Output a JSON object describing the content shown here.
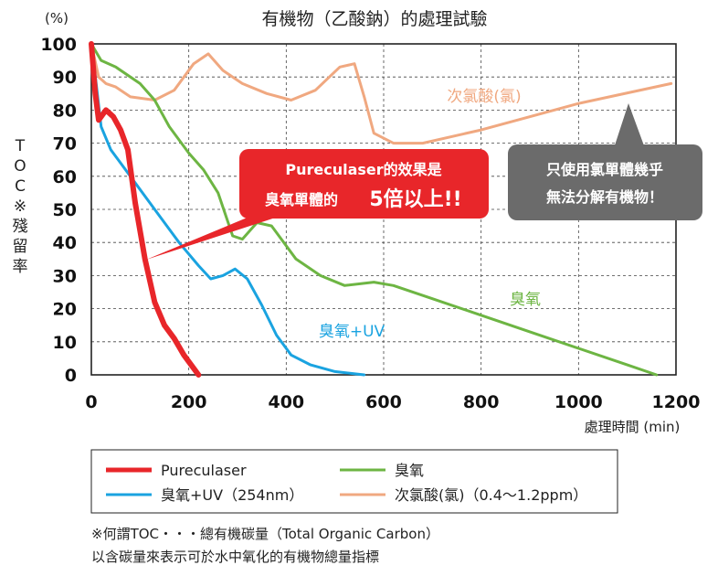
{
  "chart_data": {
    "type": "line",
    "title": "有機物（乙酸鈉）的處理試驗",
    "y_unit": "(%)",
    "ylabel": "TOC※殘留率",
    "xlabel": "處理時間 (min)",
    "xlim": [
      0,
      1200
    ],
    "ylim": [
      0,
      100
    ],
    "x_ticks": [
      "0",
      "200",
      "400",
      "600",
      "800",
      "1000",
      "1200"
    ],
    "y_ticks": [
      "0",
      "10",
      "20",
      "30",
      "40",
      "50",
      "60",
      "70",
      "80",
      "90",
      "100"
    ],
    "series": [
      {
        "name": "Pureculaser",
        "color": "#e8262a",
        "label": "",
        "points": [
          [
            0,
            100
          ],
          [
            8,
            85
          ],
          [
            15,
            77
          ],
          [
            30,
            80
          ],
          [
            45,
            78
          ],
          [
            60,
            74
          ],
          [
            75,
            68
          ],
          [
            90,
            52
          ],
          [
            110,
            35
          ],
          [
            130,
            22
          ],
          [
            150,
            15
          ],
          [
            170,
            11
          ],
          [
            190,
            6
          ],
          [
            210,
            2
          ],
          [
            220,
            0
          ]
        ]
      },
      {
        "name": "臭氧+UV（254nm）",
        "color": "#1aa3e0",
        "label": "臭氧+UV",
        "points": [
          [
            0,
            100
          ],
          [
            10,
            88
          ],
          [
            20,
            75
          ],
          [
            40,
            68
          ],
          [
            80,
            60
          ],
          [
            130,
            50
          ],
          [
            180,
            40
          ],
          [
            220,
            33
          ],
          [
            245,
            29
          ],
          [
            270,
            30
          ],
          [
            295,
            32
          ],
          [
            320,
            29
          ],
          [
            350,
            21
          ],
          [
            380,
            12
          ],
          [
            410,
            6
          ],
          [
            450,
            3
          ],
          [
            500,
            1
          ],
          [
            560,
            0
          ]
        ]
      },
      {
        "name": "臭氧",
        "color": "#6db543",
        "label": "臭氧",
        "points": [
          [
            0,
            100
          ],
          [
            20,
            95
          ],
          [
            50,
            93
          ],
          [
            100,
            88
          ],
          [
            130,
            83
          ],
          [
            160,
            75
          ],
          [
            200,
            67
          ],
          [
            230,
            62
          ],
          [
            260,
            55
          ],
          [
            290,
            42
          ],
          [
            310,
            41
          ],
          [
            340,
            46
          ],
          [
            370,
            45
          ],
          [
            420,
            35
          ],
          [
            470,
            30
          ],
          [
            520,
            27
          ],
          [
            580,
            28
          ],
          [
            620,
            27
          ],
          [
            700,
            23
          ],
          [
            800,
            18
          ],
          [
            900,
            13
          ],
          [
            1000,
            8
          ],
          [
            1100,
            3
          ],
          [
            1160,
            0
          ]
        ]
      },
      {
        "name": "次氯酸(氯)（0.4～1.2ppm）",
        "color": "#f0a880",
        "label": "次氯酸(氯)",
        "points": [
          [
            0,
            100
          ],
          [
            15,
            90
          ],
          [
            30,
            88
          ],
          [
            50,
            87
          ],
          [
            80,
            84
          ],
          [
            130,
            83
          ],
          [
            170,
            86
          ],
          [
            210,
            94
          ],
          [
            240,
            97
          ],
          [
            270,
            92
          ],
          [
            310,
            88
          ],
          [
            360,
            85
          ],
          [
            410,
            83
          ],
          [
            460,
            86
          ],
          [
            510,
            93
          ],
          [
            540,
            94
          ],
          [
            560,
            84
          ],
          [
            580,
            73
          ],
          [
            620,
            70
          ],
          [
            680,
            70
          ],
          [
            800,
            74
          ],
          [
            1000,
            82
          ],
          [
            1190,
            88
          ]
        ]
      }
    ],
    "annotations": {
      "red_callout_line1": "Pureculaser的效果是",
      "red_callout_line2a": "臭氧單體的",
      "red_callout_line2b": "5倍以上!!",
      "gray_callout_line1": "只使用氯單體幾乎",
      "gray_callout_line2": "無法分解有機物！"
    },
    "legend_placement": "bottom"
  },
  "footnote": {
    "line1": "※何謂TOC・・・總有機碳量（Total Organic Carbon）",
    "line2": "以含碳量來表示可於水中氧化的有機物總量指標"
  }
}
